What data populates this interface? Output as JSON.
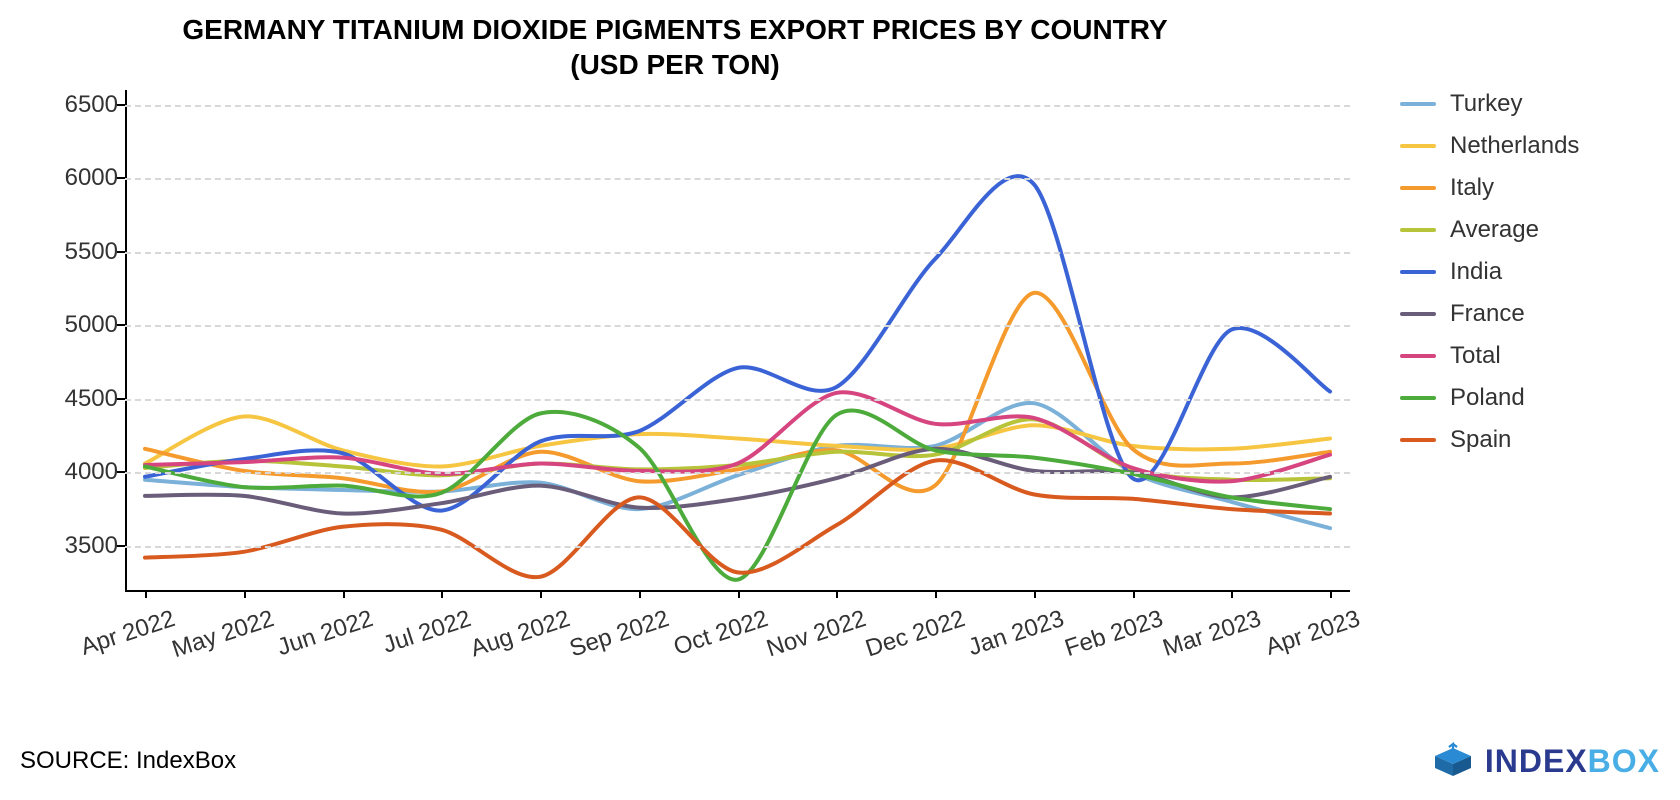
{
  "title_line1": "GERMANY TITANIUM DIOXIDE PIGMENTS EXPORT PRICES BY COUNTRY",
  "title_line2": "(USD PER TON)",
  "source_label": "SOURCE: IndexBox",
  "brand": {
    "part1": "INDEX",
    "part2": "BOX",
    "icon_color": "#2a8bd4"
  },
  "chart": {
    "type": "line",
    "background_color": "#ffffff",
    "grid_color": "#d8d8d8",
    "axis_color": "#000000",
    "tick_fontsize": 24,
    "title_fontsize": 28,
    "line_width": 4,
    "ylim": [
      3200,
      6600
    ],
    "yticks": [
      3500,
      4000,
      4500,
      5000,
      5500,
      6000,
      6500
    ],
    "x_categories": [
      "Apr 2022",
      "May 2022",
      "Jun 2022",
      "Jul 2022",
      "Aug 2022",
      "Sep 2022",
      "Oct 2022",
      "Nov 2022",
      "Dec 2022",
      "Jan 2023",
      "Feb 2023",
      "Mar 2023",
      "Apr 2023"
    ],
    "series": [
      {
        "name": "Turkey",
        "color": "#7bb0d8",
        "values": [
          3950,
          3900,
          3880,
          3870,
          3930,
          3750,
          3980,
          4180,
          4180,
          4470,
          4000,
          3800,
          3620
        ]
      },
      {
        "name": "Netherlands",
        "color": "#f6c542",
        "values": [
          4060,
          4380,
          4150,
          4040,
          4180,
          4260,
          4230,
          4180,
          4160,
          4320,
          4180,
          4160,
          4230
        ]
      },
      {
        "name": "Italy",
        "color": "#f59b2e",
        "values": [
          4160,
          4010,
          3960,
          3870,
          4140,
          3940,
          4020,
          4150,
          3910,
          5220,
          4160,
          4060,
          4140
        ]
      },
      {
        "name": "Average",
        "color": "#b7c43a",
        "values": [
          4030,
          4080,
          4040,
          3980,
          4060,
          4020,
          4050,
          4140,
          4120,
          4360,
          4020,
          3950,
          3960
        ]
      },
      {
        "name": "India",
        "color": "#3a63d6",
        "values": [
          3970,
          4090,
          4130,
          3740,
          4210,
          4280,
          4710,
          4580,
          5450,
          5960,
          3960,
          4970,
          4550
        ]
      },
      {
        "name": "France",
        "color": "#6a5d7a",
        "values": [
          3840,
          3840,
          3720,
          3790,
          3910,
          3760,
          3820,
          3960,
          4160,
          4010,
          4000,
          3830,
          3970
        ]
      },
      {
        "name": "Total",
        "color": "#d6457f",
        "values": [
          4050,
          4070,
          4100,
          3990,
          4060,
          4010,
          4060,
          4540,
          4330,
          4370,
          4030,
          3940,
          4120
        ]
      },
      {
        "name": "Poland",
        "color": "#4cab3b",
        "values": [
          4040,
          3900,
          3910,
          3860,
          4400,
          4170,
          3270,
          4390,
          4150,
          4100,
          3990,
          3830,
          3750
        ]
      },
      {
        "name": "Spain",
        "color": "#d85a1f",
        "values": [
          3420,
          3460,
          3630,
          3610,
          3290,
          3830,
          3320,
          3640,
          4080,
          3850,
          3820,
          3750,
          3720
        ]
      }
    ],
    "smoothing": 0.45
  }
}
